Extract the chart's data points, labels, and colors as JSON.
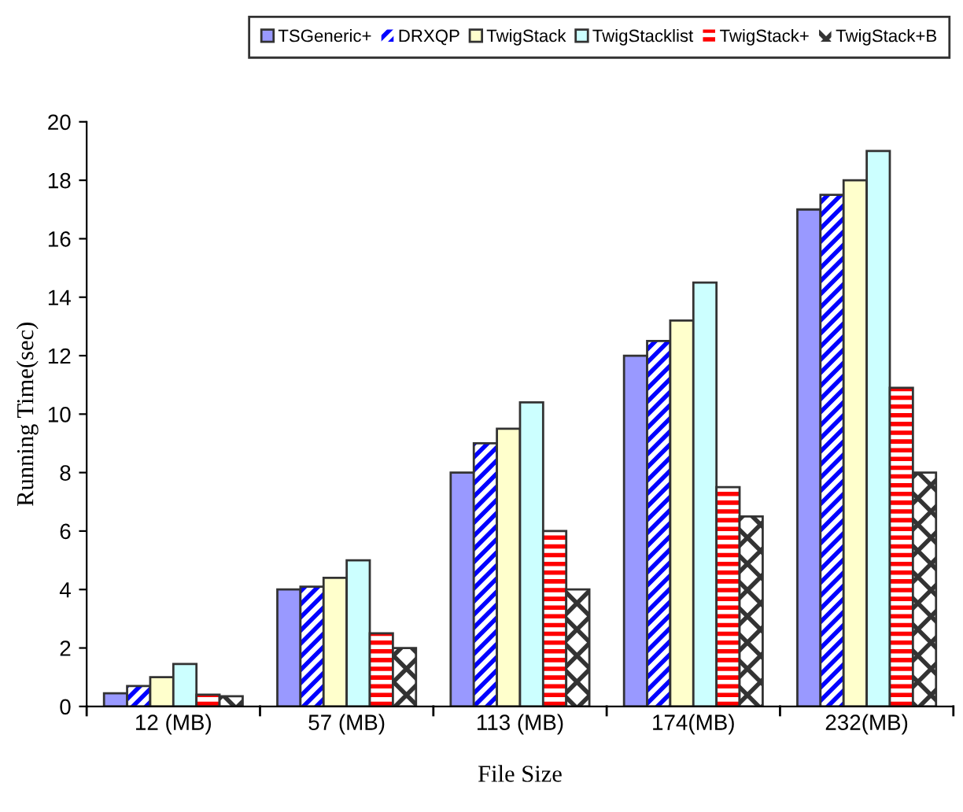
{
  "chart_data": {
    "type": "bar",
    "xlabel": "File Size",
    "ylabel": "Running Time(sec)",
    "categories": [
      "12 (MB)",
      "57 (MB)",
      "113 (MB)",
      "174(MB)",
      "232(MB)"
    ],
    "series": [
      {
        "name": "TSGeneric+",
        "color": "#9999ff",
        "values": [
          0.45,
          4.0,
          8.0,
          12.0,
          17.0
        ]
      },
      {
        "name": "DRXQP",
        "color": "#0000ff",
        "values": [
          0.7,
          4.1,
          9.0,
          12.5,
          17.5
        ]
      },
      {
        "name": "TwigStack",
        "color": "#ffffcc",
        "values": [
          1.0,
          4.4,
          9.5,
          13.2,
          18.0
        ]
      },
      {
        "name": "TwigStacklist",
        "color": "#ccffff",
        "values": [
          1.45,
          5.0,
          10.4,
          14.5,
          19.0
        ]
      },
      {
        "name": "TwigStack+",
        "color": "#ff0000",
        "values": [
          0.4,
          2.5,
          6.0,
          7.5,
          10.9
        ]
      },
      {
        "name": "TwigStack+B",
        "color": "#333333",
        "values": [
          0.35,
          2.0,
          4.0,
          6.5,
          8.0
        ]
      }
    ],
    "ylim": [
      0,
      20
    ],
    "yticks": [
      0,
      2,
      4,
      6,
      8,
      10,
      12,
      14,
      16,
      18,
      20
    ],
    "grid": false,
    "legend": "top"
  }
}
